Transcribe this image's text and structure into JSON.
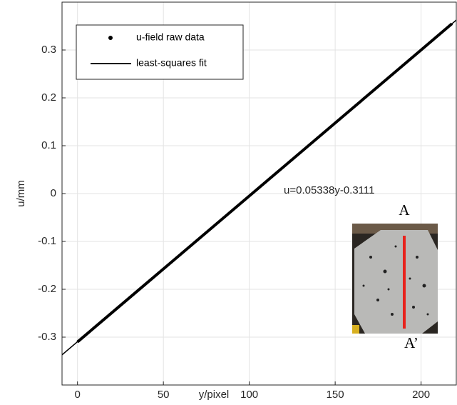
{
  "chart_data": {
    "type": "line",
    "xlabel": "y/pixel",
    "ylabel": "u/mm",
    "xlim": [
      -9,
      220.5
    ],
    "ylim": [
      -0.4,
      0.4
    ],
    "xticks": [
      0,
      50,
      100,
      150,
      200
    ],
    "yticks": [
      -0.3,
      -0.2,
      -0.1,
      0,
      0.1,
      0.2,
      0.3
    ],
    "grid": true,
    "legend": "upper left",
    "annotation": "u=0.05338y-0.3111",
    "inset_labels": [
      "A",
      "A’"
    ],
    "series": [
      {
        "name": "u-field raw data",
        "color": "#000000",
        "marker": "dot",
        "x": [
          0,
          20,
          40,
          60,
          80,
          100,
          120,
          140,
          160,
          180,
          200,
          218
        ],
        "values": [
          -0.31,
          -0.249,
          -0.188,
          -0.127,
          -0.066,
          -0.005,
          0.056,
          0.117,
          0.178,
          0.239,
          0.3,
          0.355
        ]
      },
      {
        "name": "least-squares fit",
        "color": "#000000",
        "marker": "line",
        "x": [
          -9,
          221
        ],
        "values": [
          -0.337,
          0.364
        ]
      }
    ]
  }
}
